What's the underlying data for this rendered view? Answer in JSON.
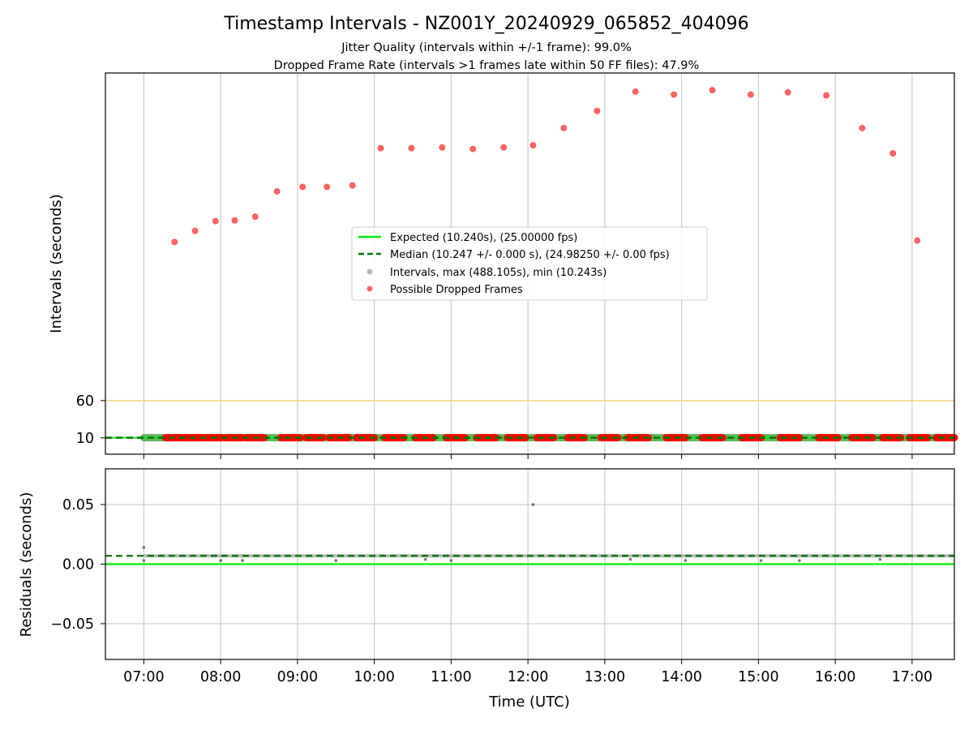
{
  "chart_data": {
    "type": "scatter",
    "title": "Timestamp Intervals - NZ001Y_20240929_065852_404096",
    "subtitle_lines": [
      "Jitter Quality (intervals within +/-1 frame): 99.0%",
      "Dropped Frame Rate (intervals >1 frames late within 50 FF files): 47.9%"
    ],
    "xlabel": "Time (UTC)",
    "x_tick_labels": [
      "07:00",
      "08:00",
      "09:00",
      "10:00",
      "11:00",
      "12:00",
      "13:00",
      "14:00",
      "15:00",
      "16:00",
      "17:00"
    ],
    "xlim": [
      "06:30",
      "17:33"
    ],
    "grid": true,
    "top_panel": {
      "ylabel": "Intervals (seconds)",
      "ylim": [
        -12,
        500
      ],
      "y_ticks": [
        10,
        60
      ],
      "y_tick_labels": [
        "10",
        "60"
      ],
      "reference_line_60": {
        "y": 60,
        "color": "#f5d37a"
      },
      "legend": {
        "placement": "center",
        "entries": [
          "Expected (10.240s), (25.00000 fps)",
          "Median (10.247 +/- 0.000 s), (24.98250 +/- 0.00 fps)",
          "Intervals, max (488.105s), min (10.243s)",
          "Possible Dropped Frames"
        ]
      },
      "expected_value": 10.24,
      "median_value": 10.247,
      "dropped_frames": [
        {
          "t": "07:24",
          "y": 273
        },
        {
          "t": "07:40",
          "y": 288
        },
        {
          "t": "07:56",
          "y": 301
        },
        {
          "t": "08:11",
          "y": 302
        },
        {
          "t": "08:27",
          "y": 307
        },
        {
          "t": "08:44",
          "y": 341
        },
        {
          "t": "09:04",
          "y": 347
        },
        {
          "t": "09:23",
          "y": 347
        },
        {
          "t": "09:43",
          "y": 349
        },
        {
          "t": "10:05",
          "y": 399
        },
        {
          "t": "10:29",
          "y": 399
        },
        {
          "t": "10:53",
          "y": 400
        },
        {
          "t": "11:17",
          "y": 398
        },
        {
          "t": "11:41",
          "y": 400
        },
        {
          "t": "12:04",
          "y": 403
        },
        {
          "t": "12:28",
          "y": 426
        },
        {
          "t": "12:54",
          "y": 449
        },
        {
          "t": "13:24",
          "y": 475
        },
        {
          "t": "13:54",
          "y": 471
        },
        {
          "t": "14:24",
          "y": 477
        },
        {
          "t": "14:54",
          "y": 471
        },
        {
          "t": "15:23",
          "y": 474
        },
        {
          "t": "15:53",
          "y": 470
        },
        {
          "t": "16:21",
          "y": 426
        },
        {
          "t": "16:45",
          "y": 392
        },
        {
          "t": "17:04",
          "y": 275
        }
      ],
      "dropped_frame_clusters_near_10s": [
        [
          "07:17",
          "07:30"
        ],
        [
          "07:32",
          "07:46"
        ],
        [
          "07:48",
          "08:01"
        ],
        [
          "08:04",
          "08:17"
        ],
        [
          "08:20",
          "08:34"
        ],
        [
          "08:47",
          "09:02"
        ],
        [
          "09:07",
          "09:20"
        ],
        [
          "09:25",
          "09:40"
        ],
        [
          "09:46",
          "10:00"
        ],
        [
          "10:08",
          "10:23"
        ],
        [
          "10:32",
          "10:46"
        ],
        [
          "10:56",
          "11:11"
        ],
        [
          "11:20",
          "11:35"
        ],
        [
          "11:44",
          "11:58"
        ],
        [
          "12:07",
          "12:20"
        ],
        [
          "12:31",
          "12:44"
        ],
        [
          "12:57",
          "13:10"
        ],
        [
          "13:18",
          "13:34"
        ],
        [
          "13:48",
          "14:03"
        ],
        [
          "14:16",
          "14:32"
        ],
        [
          "14:47",
          "15:02"
        ],
        [
          "15:17",
          "15:32"
        ],
        [
          "15:47",
          "16:02"
        ],
        [
          "16:13",
          "16:29"
        ],
        [
          "16:37",
          "16:51"
        ],
        [
          "16:58",
          "17:12"
        ],
        [
          "17:19",
          "17:33"
        ]
      ]
    },
    "bottom_panel": {
      "ylabel": "Residuals (seconds)",
      "ylim": [
        -0.08,
        0.08
      ],
      "y_ticks": [
        -0.05,
        0.0,
        0.05
      ],
      "y_tick_labels": [
        "−0.05",
        "0.00",
        "0.05"
      ],
      "expected_residual": 0.0,
      "median_residual": 0.007,
      "outliers": [
        {
          "t": "07:00",
          "y": 0.014
        },
        {
          "t": "07:00",
          "y": 0.003
        },
        {
          "t": "12:04",
          "y": 0.05
        },
        {
          "t": "08:00",
          "y": 0.003
        },
        {
          "t": "08:17",
          "y": 0.003
        },
        {
          "t": "11:00",
          "y": 0.003
        },
        {
          "t": "14:03",
          "y": 0.003
        },
        {
          "t": "15:02",
          "y": 0.003
        },
        {
          "t": "15:32",
          "y": 0.003
        },
        {
          "t": "09:30",
          "y": 0.003
        },
        {
          "t": "10:40",
          "y": 0.004
        },
        {
          "t": "13:20",
          "y": 0.004
        },
        {
          "t": "16:35",
          "y": 0.004
        }
      ]
    },
    "colors": {
      "expected": "#00ee00",
      "median": "#007700",
      "intervals": "#888888",
      "dropped": "#ff0000",
      "grid": "#cccccc",
      "ref60": "#f5d37a"
    }
  }
}
